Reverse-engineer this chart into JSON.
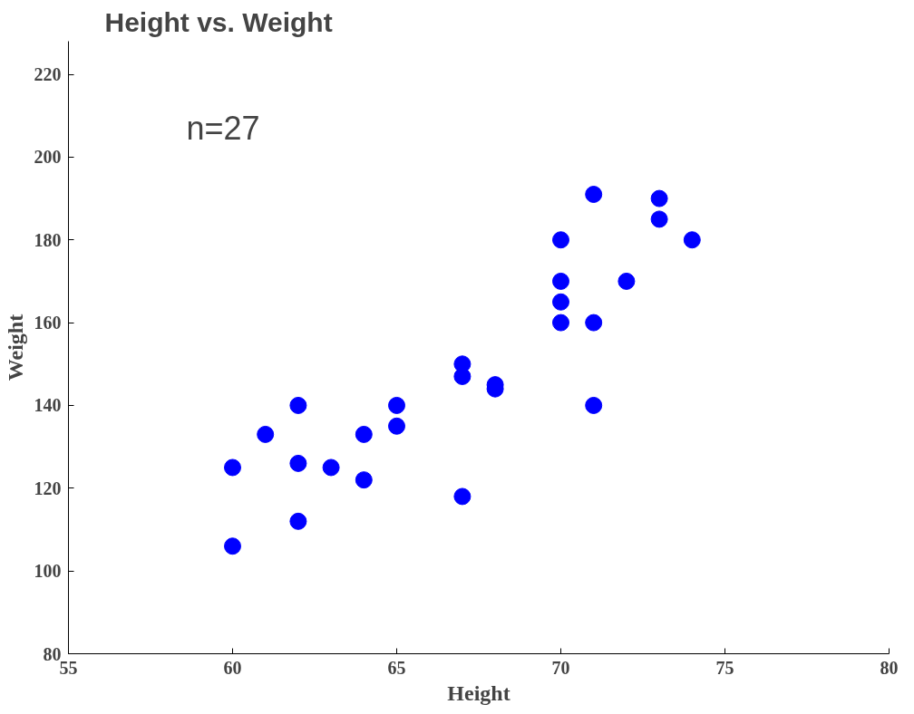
{
  "chart_data": {
    "type": "scatter",
    "title": "Height vs. Weight",
    "xlabel": "Height",
    "ylabel": "Weight",
    "annotations": [
      "n=27"
    ],
    "x": [
      60,
      60,
      61,
      62,
      62,
      62,
      63,
      64,
      64,
      65,
      65,
      67,
      67,
      67,
      68,
      68,
      70,
      70,
      70,
      70,
      71,
      71,
      71,
      72,
      73,
      73,
      74
    ],
    "series": [
      {
        "color": "#0000ff",
        "values": [
          125,
          106,
          133,
          140,
          126,
          112,
          125,
          133,
          122,
          140,
          135,
          150,
          147,
          118,
          145,
          144,
          180,
          170,
          165,
          160,
          191,
          160,
          140,
          170,
          190,
          185,
          180
        ]
      }
    ],
    "xlim": [
      55,
      80
    ],
    "xticks": [
      55,
      60,
      65,
      70,
      75,
      80
    ],
    "ylim": [
      80,
      228
    ],
    "yticks": [
      80,
      100,
      120,
      140,
      160,
      180,
      200,
      220
    ],
    "grid": false,
    "marker": "circle"
  }
}
